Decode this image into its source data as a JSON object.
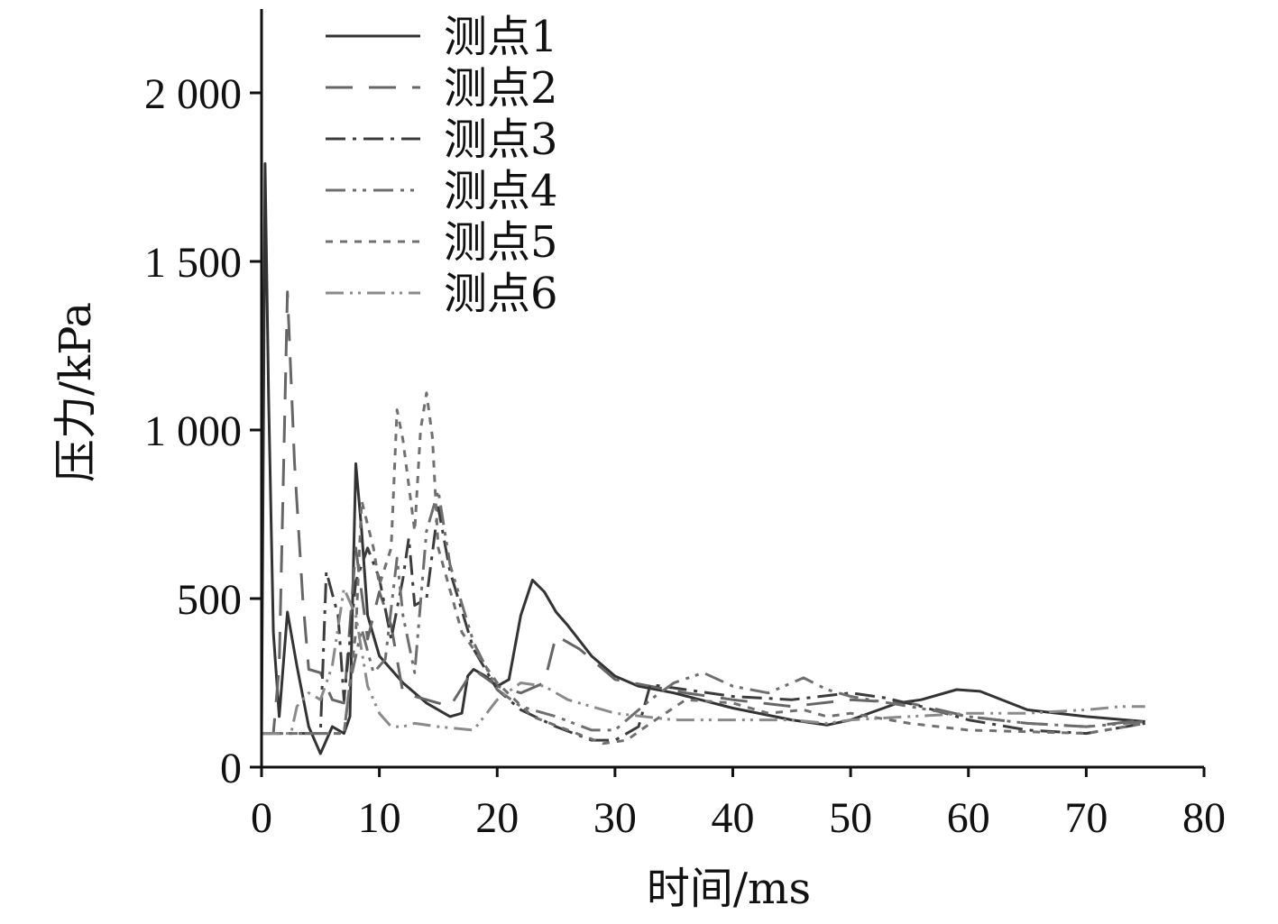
{
  "chart_data": {
    "type": "line",
    "xlabel": "时间/ms",
    "ylabel": "压力/kPa",
    "xlim": [
      0,
      80
    ],
    "ylim": [
      0,
      2000
    ],
    "x_ticks": [
      0,
      10,
      20,
      30,
      40,
      50,
      60,
      70,
      80
    ],
    "x_tick_labels": [
      "0",
      "10",
      "20",
      "30",
      "40",
      "50",
      "60",
      "70",
      "80"
    ],
    "y_ticks": [
      0,
      500,
      1000,
      1500,
      2000
    ],
    "y_tick_labels": [
      "0",
      "500",
      "1 000",
      "1 500",
      "2 000"
    ],
    "grid": false,
    "legend_position": "top-left",
    "series": [
      {
        "name": "测点1",
        "color": "#333333",
        "dash": "solid",
        "points": [
          [
            0,
            100
          ],
          [
            0.3,
            1790
          ],
          [
            0.6,
            1100
          ],
          [
            1.0,
            400
          ],
          [
            1.5,
            150
          ],
          [
            2.2,
            460
          ],
          [
            3.0,
            300
          ],
          [
            4.0,
            120
          ],
          [
            5.0,
            40
          ],
          [
            6.0,
            120
          ],
          [
            7.0,
            100
          ],
          [
            7.5,
            150
          ],
          [
            8.0,
            900
          ],
          [
            8.5,
            700
          ],
          [
            9.0,
            450
          ],
          [
            10,
            330
          ],
          [
            12,
            250
          ],
          [
            14,
            190
          ],
          [
            16,
            150
          ],
          [
            17,
            160
          ],
          [
            17.5,
            270
          ],
          [
            18,
            290
          ],
          [
            19,
            270
          ],
          [
            20,
            240
          ],
          [
            21,
            260
          ],
          [
            22,
            450
          ],
          [
            23,
            555
          ],
          [
            24,
            520
          ],
          [
            25,
            460
          ],
          [
            26,
            420
          ],
          [
            28,
            330
          ],
          [
            30,
            270
          ],
          [
            32,
            240
          ],
          [
            35,
            220
          ],
          [
            40,
            175
          ],
          [
            45,
            140
          ],
          [
            48,
            125
          ],
          [
            50,
            140
          ],
          [
            54,
            190
          ],
          [
            56,
            200
          ],
          [
            59,
            230
          ],
          [
            61,
            225
          ],
          [
            65,
            170
          ],
          [
            70,
            150
          ],
          [
            75,
            135
          ]
        ]
      },
      {
        "name": "测点2",
        "color": "#666666",
        "dash": "30,18",
        "points": [
          [
            0,
            100
          ],
          [
            1.0,
            100
          ],
          [
            1.5,
            300
          ],
          [
            2.2,
            1410
          ],
          [
            2.8,
            900
          ],
          [
            3.5,
            500
          ],
          [
            4.0,
            290
          ],
          [
            5.0,
            280
          ],
          [
            6.0,
            200
          ],
          [
            7.0,
            190
          ],
          [
            8.0,
            650
          ],
          [
            9.0,
            380
          ],
          [
            10,
            520
          ],
          [
            11,
            420
          ],
          [
            12,
            220
          ],
          [
            14,
            200
          ],
          [
            16,
            180
          ],
          [
            18,
            290
          ],
          [
            20,
            240
          ],
          [
            22,
            220
          ],
          [
            24,
            250
          ],
          [
            25,
            390
          ],
          [
            27,
            350
          ],
          [
            30,
            260
          ],
          [
            33,
            240
          ],
          [
            36,
            220
          ],
          [
            40,
            200
          ],
          [
            45,
            180
          ],
          [
            50,
            200
          ],
          [
            55,
            190
          ],
          [
            60,
            150
          ],
          [
            65,
            130
          ],
          [
            70,
            120
          ],
          [
            75,
            140
          ]
        ]
      },
      {
        "name": "测点3",
        "color": "#3c3c3c",
        "dash": "22,8,4,8",
        "points": [
          [
            0,
            100
          ],
          [
            5.0,
            100
          ],
          [
            5.5,
            580
          ],
          [
            6.5,
            450
          ],
          [
            7.0,
            200
          ],
          [
            8.0,
            550
          ],
          [
            9.0,
            650
          ],
          [
            10,
            560
          ],
          [
            11,
            380
          ],
          [
            12,
            560
          ],
          [
            12.5,
            680
          ],
          [
            13,
            480
          ],
          [
            14,
            500
          ],
          [
            15,
            770
          ],
          [
            16,
            580
          ],
          [
            18,
            350
          ],
          [
            20,
            230
          ],
          [
            22,
            170
          ],
          [
            25,
            120
          ],
          [
            28,
            80
          ],
          [
            30,
            80
          ],
          [
            32,
            120
          ],
          [
            33,
            245
          ],
          [
            36,
            230
          ],
          [
            40,
            210
          ],
          [
            45,
            200
          ],
          [
            50,
            220
          ],
          [
            53,
            205
          ],
          [
            56,
            180
          ],
          [
            60,
            140
          ],
          [
            65,
            110
          ],
          [
            70,
            100
          ],
          [
            75,
            130
          ]
        ]
      },
      {
        "name": "测点4",
        "color": "#6e6e6e",
        "dash": "22,8,4,7,4,8",
        "points": [
          [
            0,
            100
          ],
          [
            7.0,
            100
          ],
          [
            7.5,
            250
          ],
          [
            8.5,
            410
          ],
          [
            9.5,
            280
          ],
          [
            10.5,
            320
          ],
          [
            11.5,
            620
          ],
          [
            12,
            450
          ],
          [
            13,
            280
          ],
          [
            14,
            700
          ],
          [
            15,
            820
          ],
          [
            16,
            600
          ],
          [
            18,
            370
          ],
          [
            20,
            230
          ],
          [
            22,
            180
          ],
          [
            25,
            150
          ],
          [
            28,
            110
          ],
          [
            30,
            110
          ],
          [
            33,
            200
          ],
          [
            35,
            250
          ],
          [
            37.5,
            280
          ],
          [
            40,
            240
          ],
          [
            43,
            220
          ],
          [
            46,
            265
          ],
          [
            48,
            230
          ],
          [
            50,
            210
          ],
          [
            55,
            180
          ],
          [
            60,
            150
          ],
          [
            65,
            130
          ],
          [
            70,
            120
          ],
          [
            75,
            135
          ]
        ]
      },
      {
        "name": "测点5",
        "color": "#707070",
        "dash": "8,8",
        "points": [
          [
            0,
            100
          ],
          [
            7.0,
            100
          ],
          [
            8.0,
            400
          ],
          [
            8.5,
            790
          ],
          [
            9.5,
            650
          ],
          [
            10,
            540
          ],
          [
            11,
            650
          ],
          [
            11.5,
            1060
          ],
          [
            12,
            970
          ],
          [
            13,
            700
          ],
          [
            13.5,
            1000
          ],
          [
            14,
            1110
          ],
          [
            14.5,
            980
          ],
          [
            15,
            650
          ],
          [
            17,
            400
          ],
          [
            20,
            250
          ],
          [
            23,
            150
          ],
          [
            26,
            110
          ],
          [
            29,
            70
          ],
          [
            31,
            80
          ],
          [
            33,
            130
          ],
          [
            36,
            200
          ],
          [
            40,
            190
          ],
          [
            43,
            160
          ],
          [
            46,
            170
          ],
          [
            48,
            150
          ],
          [
            50,
            160
          ],
          [
            55,
            130
          ],
          [
            60,
            110
          ],
          [
            65,
            105
          ],
          [
            70,
            100
          ],
          [
            75,
            130
          ]
        ]
      },
      {
        "name": "测点6",
        "color": "#8a8a8a",
        "dash": "20,7,3,6,3,7",
        "points": [
          [
            0,
            100
          ],
          [
            2.5,
            100
          ],
          [
            3.0,
            180
          ],
          [
            4.0,
            220
          ],
          [
            5.0,
            200
          ],
          [
            6.0,
            300
          ],
          [
            7.0,
            530
          ],
          [
            8.0,
            450
          ],
          [
            9.0,
            240
          ],
          [
            10,
            160
          ],
          [
            11,
            120
          ],
          [
            12,
            120
          ],
          [
            13,
            130
          ],
          [
            15,
            120
          ],
          [
            18,
            110
          ],
          [
            20,
            200
          ],
          [
            22,
            250
          ],
          [
            24,
            240
          ],
          [
            26,
            200
          ],
          [
            30,
            160
          ],
          [
            35,
            140
          ],
          [
            40,
            140
          ],
          [
            45,
            140
          ],
          [
            48,
            130
          ],
          [
            50,
            140
          ],
          [
            55,
            150
          ],
          [
            60,
            160
          ],
          [
            65,
            160
          ],
          [
            70,
            170
          ],
          [
            73,
            180
          ],
          [
            75,
            180
          ]
        ]
      }
    ]
  }
}
